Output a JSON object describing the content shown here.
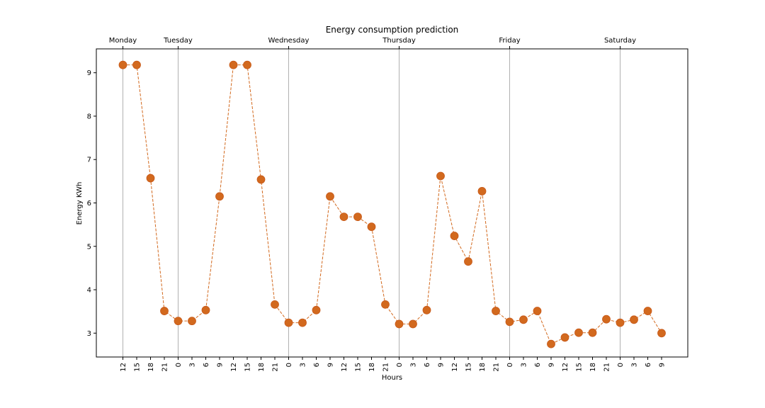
{
  "chart_data": {
    "type": "line",
    "title": "Energy consumption prediction",
    "xlabel": "Hours",
    "ylabel": "Energy KWh",
    "ylim": [
      2.45,
      9.55
    ],
    "yticks": [
      3,
      4,
      5,
      6,
      7,
      8,
      9
    ],
    "x_tick_labels": [
      "12",
      "15",
      "18",
      "21",
      "0",
      "3",
      "6",
      "9",
      "12",
      "15",
      "18",
      "21",
      "0",
      "3",
      "6",
      "9",
      "12",
      "15",
      "18",
      "21",
      "0",
      "3",
      "6",
      "9",
      "12",
      "15",
      "18",
      "21",
      "0",
      "3",
      "6",
      "9",
      "12",
      "15",
      "18",
      "21",
      "0",
      "3",
      "6",
      "9"
    ],
    "day_markers": [
      {
        "label": "Monday",
        "index": 0
      },
      {
        "label": "Tuesday",
        "index": 4
      },
      {
        "label": "Wednesday",
        "index": 12
      },
      {
        "label": "Thursday",
        "index": 20
      },
      {
        "label": "Friday",
        "index": 28
      },
      {
        "label": "Saturday",
        "index": 36
      }
    ],
    "series": [
      {
        "color": "#d2691e",
        "line_style": "dashed",
        "marker": "circle",
        "values": [
          9.18,
          9.18,
          6.57,
          3.51,
          3.28,
          3.28,
          3.53,
          6.15,
          9.18,
          9.18,
          6.54,
          3.66,
          3.24,
          3.24,
          3.53,
          6.15,
          5.68,
          5.68,
          5.45,
          3.66,
          3.21,
          3.21,
          3.53,
          6.62,
          5.24,
          4.65,
          6.27,
          3.51,
          3.26,
          3.31,
          3.51,
          2.75,
          2.9,
          3.01,
          3.01,
          3.32,
          3.24,
          3.31,
          3.51,
          3.0
        ]
      }
    ],
    "grid": "vertical lines at day markers only"
  }
}
